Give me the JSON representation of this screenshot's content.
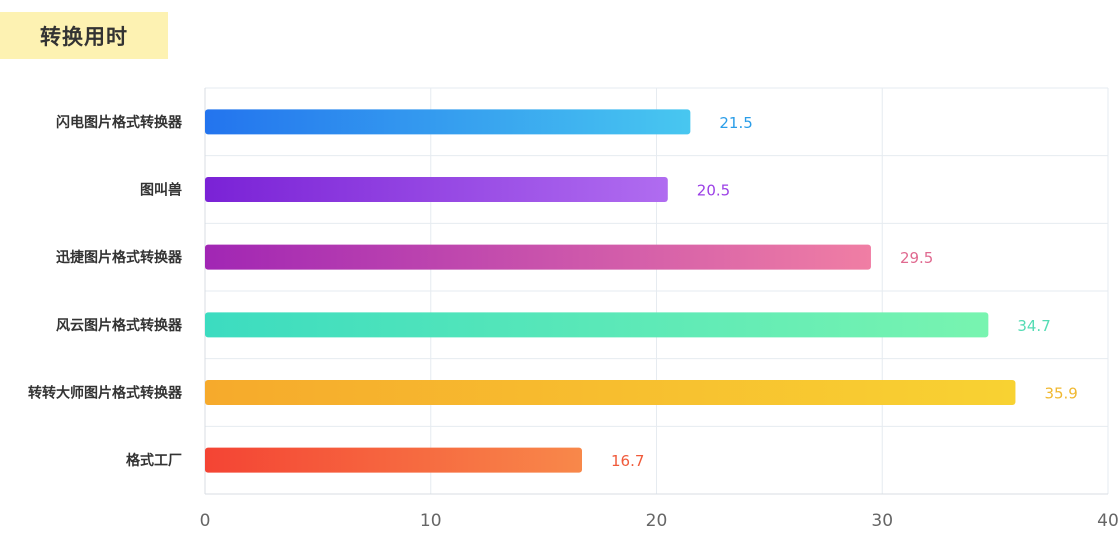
{
  "title": "转换用时",
  "chart_data": {
    "type": "bar",
    "orientation": "horizontal",
    "title": "转换用时",
    "categories": [
      "闪电图片格式转换器",
      "图叫兽",
      "迅捷图片格式转换器",
      "风云图片格式转换器",
      "转转大师图片格式转换器",
      "格式工厂"
    ],
    "values": [
      21.5,
      20.5,
      29.5,
      34.7,
      35.9,
      16.7
    ],
    "value_labels": [
      "21.5",
      "20.5",
      "29.5",
      "34.7",
      "35.9",
      "16.7"
    ],
    "xlim": [
      0,
      40
    ],
    "xticks": [
      0,
      10,
      20,
      30,
      40
    ],
    "xtick_labels": [
      "0",
      "10",
      "20",
      "30",
      "40"
    ],
    "grid": true,
    "legend": "none",
    "colors": [
      {
        "start": "#2374ee",
        "end": "#48c7f0",
        "label": "#2a9de8"
      },
      {
        "start": "#7a22d6",
        "end": "#b06cf0",
        "label": "#9b3fe6"
      },
      {
        "start": "#a126b4",
        "end": "#f07ea4",
        "label": "#e06a90"
      },
      {
        "start": "#3cdcc0",
        "end": "#78f4b0",
        "label": "#55dcb4"
      },
      {
        "start": "#f6aa2c",
        "end": "#f8d232",
        "label": "#f0b830"
      },
      {
        "start": "#f44434",
        "end": "#f8884a",
        "label": "#f05a3a"
      }
    ]
  }
}
